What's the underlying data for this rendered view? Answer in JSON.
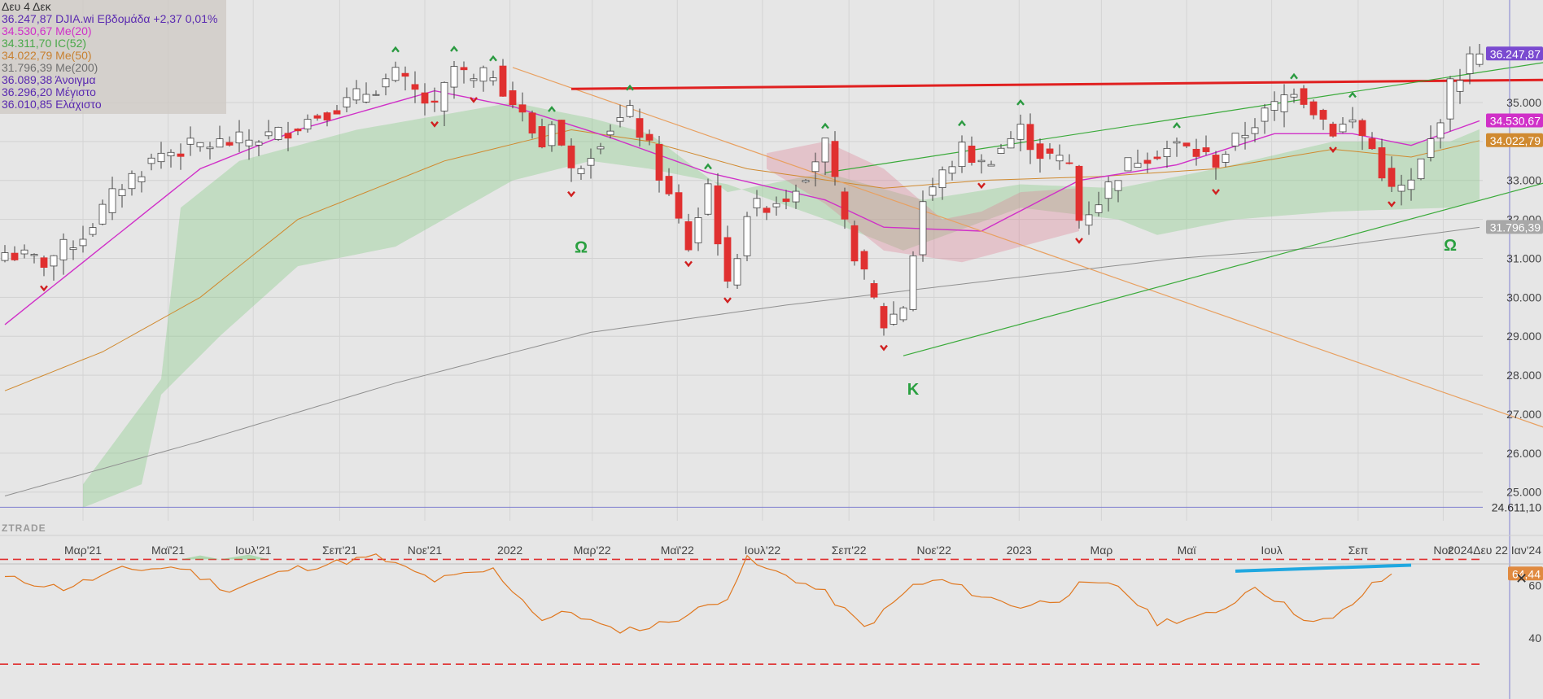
{
  "legend": {
    "date": "Δευ 4 Δεκ",
    "main": "36.247,87 DJIA.wi Εβδομάδα +2,37 0,01%",
    "ma20": "34.530,67 Me(20)",
    "ic52": "34.311,70 IC(52)",
    "ma50": "34.022,79 Me(50)",
    "ma200": "31.796,39 Me(200)",
    "open": "36.089,38 Άνοιγμα",
    "high": "36.296,20 Μέγιστο",
    "low": "36.010,85 Ελάχιστο"
  },
  "colors": {
    "main": "#5a2ab0",
    "ma20": "#d030c8",
    "ic52": "#4aa84a",
    "ma50": "#d08a30",
    "ma200": "#909090",
    "up": "#ffffff",
    "down": "#e03030",
    "resistance": "#e02020",
    "trend_orange": "#e8a060",
    "trend_green": "#3aaa3a",
    "rsi": "#e07820",
    "rsi_trend": "#20a8e0"
  },
  "brand": "ZTRADE",
  "close_icon": "✕",
  "chart_data": {
    "type": "candlestick",
    "interval": "Εβδομάδα",
    "ylim": [
      24000,
      37300
    ],
    "y_ticks": [
      "35.000",
      "34.000",
      "33.000",
      "32.000",
      "31.000",
      "30.000",
      "29.000",
      "28.000",
      "27.000",
      "26.000",
      "25.000"
    ],
    "y_tick_values": [
      35000,
      34000,
      33000,
      32000,
      31000,
      30000,
      29000,
      28000,
      27000,
      26000,
      25000
    ],
    "x_ticks": [
      "Μαρ'21",
      "Μαϊ'21",
      "Ιουλ'21",
      "Σεπ'21",
      "Νοε'21",
      "2022",
      "Μαρ'22",
      "Μαϊ'22",
      "Ιουλ'22",
      "Σεπ'22",
      "Νοε'22",
      "2023",
      "Μαρ",
      "Μαϊ",
      "Ιουλ",
      "Σεπ",
      "Νοε"
    ],
    "x_tick_dates": [
      "2021-03-01",
      "2021-05-01",
      "2021-07-01",
      "2021-09-01",
      "2021-11-01",
      "2022-01-01",
      "2022-03-01",
      "2022-05-01",
      "2022-07-01",
      "2022-09-01",
      "2022-11-01",
      "2023-01-01",
      "2023-03-01",
      "2023-05-01",
      "2023-07-01",
      "2023-09-01",
      "2023-11-01"
    ],
    "x_extra_label": "2024Δευ 22 Ιαν'24",
    "price_labels": [
      {
        "text": "36.247,87",
        "value": 36247.87,
        "color": "#7a4ad0"
      },
      {
        "text": "34.530,67",
        "value": 34530.67,
        "color": "#d030c8"
      },
      {
        "text": "34.022,79",
        "value": 34022.79,
        "color": "#d08a30"
      },
      {
        "text": "31.796,39",
        "value": 31796.39,
        "color": "#a8a8a8"
      }
    ],
    "hline_label": {
      "text": "24.611,10",
      "value": 24611.1
    },
    "annotations": [
      {
        "text": "Ω",
        "date": "2022-02-21",
        "value": 31150
      },
      {
        "text": "K",
        "date": "2022-10-17",
        "value": 27500
      },
      {
        "text": "Ω",
        "date": "2023-11-06",
        "value": 31200
      }
    ],
    "rsi": {
      "ylim": [
        28,
        80
      ],
      "ticks": [
        "60",
        "40"
      ],
      "tick_values": [
        60,
        40
      ],
      "dashed_levels": [
        70,
        30
      ],
      "last": "64,44",
      "last_value": 64.44,
      "anchors": [
        [
          0,
          63
        ],
        [
          6,
          59
        ],
        [
          12,
          66
        ],
        [
          18,
          67
        ],
        [
          23,
          58
        ],
        [
          29,
          66
        ],
        [
          38,
          71
        ],
        [
          44,
          62
        ],
        [
          50,
          66
        ],
        [
          55,
          47
        ],
        [
          58,
          50
        ],
        [
          62,
          43
        ],
        [
          66,
          44
        ],
        [
          70,
          49
        ],
        [
          74,
          56
        ],
        [
          76,
          70
        ],
        [
          78,
          66
        ],
        [
          80,
          64
        ],
        [
          84,
          57
        ],
        [
          88,
          44
        ],
        [
          90,
          50
        ],
        [
          93,
          60
        ],
        [
          96,
          62
        ],
        [
          100,
          56
        ],
        [
          104,
          52
        ],
        [
          108,
          55
        ],
        [
          110,
          60
        ],
        [
          114,
          60
        ],
        [
          118,
          46
        ],
        [
          122,
          48
        ],
        [
          124,
          49
        ],
        [
          128,
          60
        ],
        [
          132,
          50
        ],
        [
          134,
          46
        ],
        [
          136,
          47
        ],
        [
          138,
          53
        ],
        [
          140,
          60
        ],
        [
          142,
          64
        ]
      ]
    },
    "anchors": [
      [
        0,
        31150
      ],
      [
        4,
        30900
      ],
      [
        8,
        31600
      ],
      [
        12,
        32900
      ],
      [
        16,
        33700
      ],
      [
        20,
        33900
      ],
      [
        24,
        34000
      ],
      [
        28,
        34200
      ],
      [
        32,
        34700
      ],
      [
        35,
        35000
      ],
      [
        40,
        35700
      ],
      [
        44,
        34800
      ],
      [
        46,
        35900
      ],
      [
        48,
        35500
      ],
      [
        50,
        35800
      ],
      [
        52,
        35000
      ],
      [
        55,
        33900
      ],
      [
        56,
        34600
      ],
      [
        58,
        33200
      ],
      [
        62,
        34400
      ],
      [
        64,
        34700
      ],
      [
        66,
        33800
      ],
      [
        70,
        31300
      ],
      [
        72,
        32900
      ],
      [
        74,
        30200
      ],
      [
        76,
        32200
      ],
      [
        80,
        32600
      ],
      [
        84,
        33900
      ],
      [
        86,
        31800
      ],
      [
        88,
        30500
      ],
      [
        90,
        29300
      ],
      [
        92,
        29800
      ],
      [
        94,
        32500
      ],
      [
        98,
        33800
      ],
      [
        100,
        33400
      ],
      [
        104,
        34300
      ],
      [
        106,
        33700
      ],
      [
        109,
        33400
      ],
      [
        110,
        32000
      ],
      [
        112,
        32500
      ],
      [
        114,
        33200
      ],
      [
        116,
        33600
      ],
      [
        120,
        33900
      ],
      [
        124,
        33500
      ],
      [
        128,
        34500
      ],
      [
        130,
        34900
      ],
      [
        132,
        35400
      ],
      [
        136,
        34300
      ],
      [
        138,
        34500
      ],
      [
        140,
        33800
      ],
      [
        142,
        32700
      ],
      [
        144,
        32900
      ],
      [
        146,
        34000
      ],
      [
        148,
        35400
      ],
      [
        150,
        36100
      ],
      [
        151,
        36247.87
      ]
    ],
    "ma20_anchors": [
      [
        0,
        29300
      ],
      [
        10,
        31300
      ],
      [
        20,
        33300
      ],
      [
        30,
        34300
      ],
      [
        44,
        35300
      ],
      [
        52,
        34900
      ],
      [
        62,
        34100
      ],
      [
        72,
        33200
      ],
      [
        84,
        32500
      ],
      [
        90,
        31800
      ],
      [
        100,
        31700
      ],
      [
        110,
        33000
      ],
      [
        120,
        33400
      ],
      [
        130,
        34200
      ],
      [
        138,
        34200
      ],
      [
        144,
        33900
      ],
      [
        151,
        34530.67
      ]
    ],
    "ma50_anchors": [
      [
        0,
        27600
      ],
      [
        10,
        28600
      ],
      [
        20,
        30000
      ],
      [
        30,
        32000
      ],
      [
        45,
        33500
      ],
      [
        58,
        34300
      ],
      [
        66,
        34000
      ],
      [
        76,
        33300
      ],
      [
        90,
        32800
      ],
      [
        100,
        33000
      ],
      [
        112,
        33100
      ],
      [
        124,
        33300
      ],
      [
        136,
        33800
      ],
      [
        144,
        33600
      ],
      [
        151,
        34022.79
      ]
    ],
    "ma200_anchors": [
      [
        0,
        24900
      ],
      [
        20,
        26300
      ],
      [
        40,
        27800
      ],
      [
        60,
        29100
      ],
      [
        80,
        29800
      ],
      [
        100,
        30400
      ],
      [
        120,
        31000
      ],
      [
        136,
        31300
      ],
      [
        151,
        31796.39
      ]
    ],
    "cloud_upper": [
      [
        8,
        25200
      ],
      [
        16,
        27900
      ],
      [
        18,
        32300
      ],
      [
        24,
        33500
      ],
      [
        36,
        34300
      ],
      [
        52,
        35000
      ],
      [
        60,
        34600
      ],
      [
        66,
        34200
      ],
      [
        74,
        32700
      ],
      [
        84,
        33200
      ],
      [
        94,
        32500
      ],
      [
        104,
        32900
      ],
      [
        114,
        32800
      ],
      [
        124,
        33300
      ],
      [
        136,
        34000
      ],
      [
        148,
        34000
      ],
      [
        151,
        34311.7
      ]
    ],
    "cloud_lower": [
      [
        8,
        24600
      ],
      [
        14,
        25200
      ],
      [
        16,
        27500
      ],
      [
        22,
        29000
      ],
      [
        30,
        30800
      ],
      [
        40,
        31300
      ],
      [
        52,
        33000
      ],
      [
        60,
        33500
      ],
      [
        66,
        33300
      ],
      [
        74,
        32900
      ],
      [
        84,
        32000
      ],
      [
        92,
        31200
      ],
      [
        104,
        32300
      ],
      [
        114,
        32000
      ],
      [
        118,
        31600
      ],
      [
        126,
        32000
      ],
      [
        136,
        32200
      ],
      [
        148,
        32300
      ],
      [
        151,
        32500
      ]
    ],
    "trendlines": [
      {
        "name": "orange",
        "color": "#e8a060",
        "points": [
          [
            52,
            35900
          ],
          [
            164,
            26100
          ]
        ]
      },
      {
        "name": "resistance",
        "color": "#e02020",
        "points": [
          [
            58,
            35350
          ],
          [
            166,
            35600
          ]
        ]
      },
      {
        "name": "upper-green",
        "color": "#3aaa3a",
        "points": [
          [
            84,
            33200
          ],
          [
            166,
            36350
          ]
        ]
      },
      {
        "name": "lower-green",
        "color": "#3aaa3a",
        "points": [
          [
            92,
            28500
          ],
          [
            166,
            33500
          ]
        ]
      }
    ]
  }
}
